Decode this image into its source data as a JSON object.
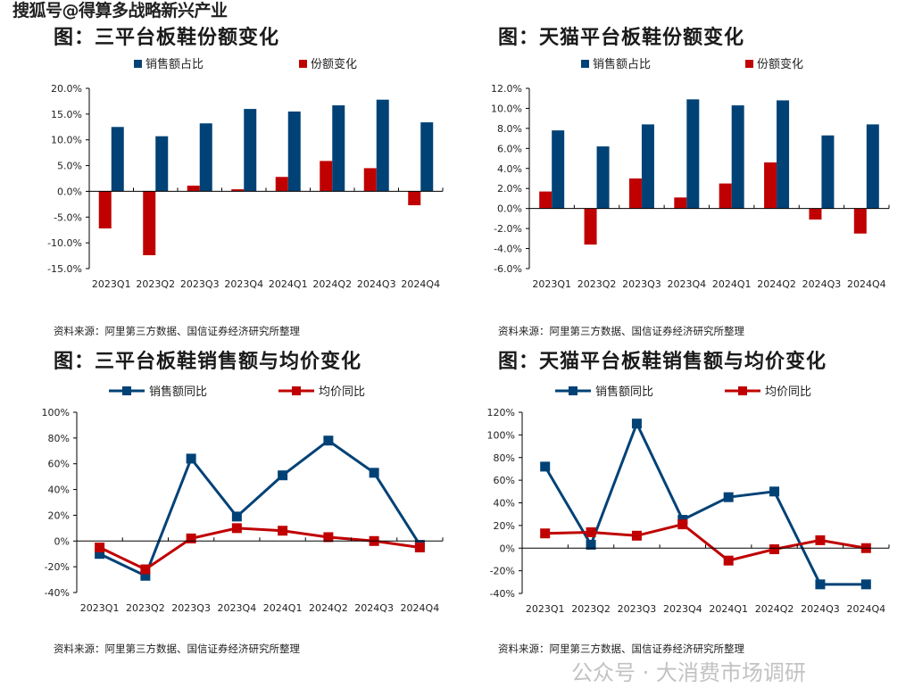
{
  "watermark_top": "搜狐号@得算多战略新兴产业",
  "watermark_bottom": "公众号 · 大消费市场调研",
  "source_text": "资料来源：阿里第三方数据、国信证券经济研究所整理",
  "colors": {
    "blue": "#004276",
    "red": "#C00000"
  },
  "chart_data": [
    {
      "type": "bar",
      "title": "图：三平台板鞋份额变化",
      "categories": [
        "2023Q1",
        "2023Q2",
        "2023Q3",
        "2023Q4",
        "2024Q1",
        "2024Q2",
        "2024Q3",
        "2024Q4"
      ],
      "series": [
        {
          "name": "销售额占比",
          "values": [
            12.5,
            10.7,
            13.2,
            16.0,
            15.5,
            16.7,
            17.8,
            13.4
          ]
        },
        {
          "name": "份额变化",
          "values": [
            -7.2,
            -12.4,
            1.1,
            0.4,
            2.8,
            5.9,
            4.5,
            -2.7
          ]
        }
      ],
      "ylim": [
        -15,
        20
      ],
      "yticks": [
        "20.0%",
        "15.0%",
        "10.0%",
        "5.0%",
        "0.0%",
        "-5.0%",
        "-10.0%",
        "-15.0%"
      ],
      "ytick_values": [
        20,
        15,
        10,
        5,
        0,
        -5,
        -10,
        -15
      ],
      "legend": "top",
      "xlabel": "",
      "ylabel": ""
    },
    {
      "type": "bar",
      "title": "图：天猫平台板鞋份额变化",
      "categories": [
        "2023Q1",
        "2023Q2",
        "2023Q3",
        "2023Q4",
        "2024Q1",
        "2024Q2",
        "2024Q3",
        "2024Q4"
      ],
      "series": [
        {
          "name": "销售额占比",
          "values": [
            7.8,
            6.2,
            8.4,
            10.9,
            10.3,
            10.8,
            7.3,
            8.4
          ]
        },
        {
          "name": "份额变化",
          "values": [
            1.7,
            -3.6,
            3.0,
            1.1,
            2.5,
            4.6,
            -1.1,
            -2.5
          ]
        }
      ],
      "ylim": [
        -6,
        12
      ],
      "yticks": [
        "12.0%",
        "10.0%",
        "8.0%",
        "6.0%",
        "4.0%",
        "2.0%",
        "0.0%",
        "-2.0%",
        "-4.0%",
        "-6.0%"
      ],
      "ytick_values": [
        12,
        10,
        8,
        6,
        4,
        2,
        0,
        -2,
        -4,
        -6
      ],
      "legend": "top",
      "xlabel": "",
      "ylabel": ""
    },
    {
      "type": "line",
      "title": "图：三平台板鞋销售额与均价变化",
      "categories": [
        "2023Q1",
        "2023Q2",
        "2023Q3",
        "2023Q4",
        "2024Q1",
        "2024Q2",
        "2024Q3",
        "2024Q4"
      ],
      "series": [
        {
          "name": "销售额同比",
          "values": [
            -10,
            -27,
            64,
            19,
            51,
            78,
            53,
            -3
          ]
        },
        {
          "name": "均价同比",
          "values": [
            -5,
            -22,
            2,
            10,
            8,
            3,
            0,
            -5
          ]
        }
      ],
      "ylim": [
        -40,
        100
      ],
      "yticks": [
        "100%",
        "80%",
        "60%",
        "40%",
        "20%",
        "0%",
        "-20%",
        "-40%"
      ],
      "ytick_values": [
        100,
        80,
        60,
        40,
        20,
        0,
        -20,
        -40
      ],
      "legend": "top",
      "xlabel": "",
      "ylabel": ""
    },
    {
      "type": "line",
      "title": "图：天猫平台板鞋销售额与均价变化",
      "categories": [
        "2023Q1",
        "2023Q2",
        "2023Q3",
        "2023Q4",
        "2024Q1",
        "2024Q2",
        "2024Q3",
        "2024Q4"
      ],
      "series": [
        {
          "name": "销售额同比",
          "values": [
            72,
            3,
            110,
            25,
            45,
            50,
            -32,
            -32
          ]
        },
        {
          "name": "均价同比",
          "values": [
            13,
            14,
            11,
            21,
            -11,
            -1,
            7,
            0
          ]
        }
      ],
      "ylim": [
        -40,
        120
      ],
      "yticks": [
        "120%",
        "100%",
        "80%",
        "60%",
        "40%",
        "20%",
        "0%",
        "-20%",
        "-40%"
      ],
      "ytick_values": [
        120,
        100,
        80,
        60,
        40,
        20,
        0,
        -20,
        -40
      ],
      "legend": "top",
      "xlabel": "",
      "ylabel": ""
    }
  ]
}
